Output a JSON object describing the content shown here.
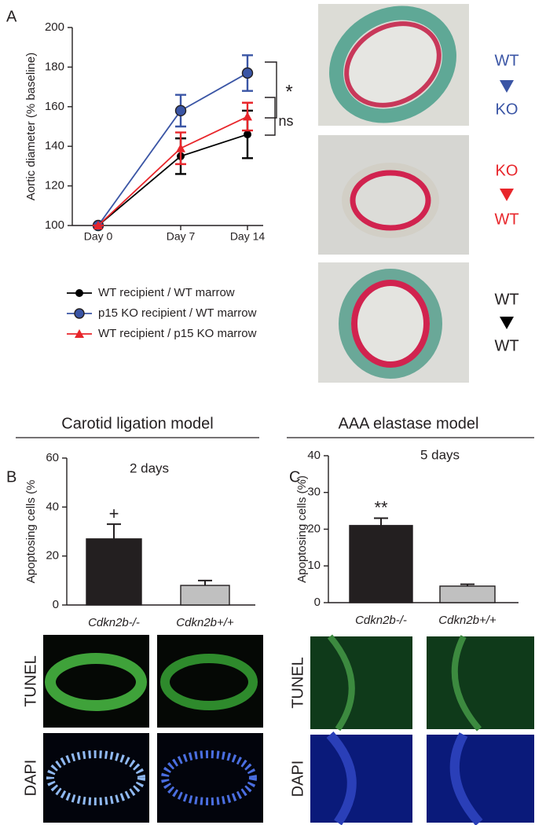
{
  "panel_labels": [
    "A",
    "B",
    "C"
  ],
  "section_titles": [
    "Carotid ligation model",
    "AAA elastase model"
  ],
  "image_labels": {
    "a": [
      [
        "WT",
        "KO"
      ],
      [
        "KO",
        "WT"
      ],
      [
        "WT",
        "WT"
      ]
    ],
    "b": [
      "TUNEL",
      "DAPI"
    ],
    "c": [
      "TUNEL",
      "DAPI"
    ]
  },
  "chart_data": [
    {
      "type": "line",
      "ylabel": "Aortic diameter (% baseline)",
      "categories": [
        "Day 0",
        "Day 7",
        "Day 14"
      ],
      "ylim": [
        100,
        200
      ],
      "yticks": [
        100,
        120,
        140,
        160,
        180,
        200
      ],
      "series": [
        {
          "name": "WT recipient / WT marrow",
          "color": "#000000",
          "marker": "circle",
          "values": [
            100,
            135,
            146
          ],
          "errors": [
            0,
            9,
            12
          ]
        },
        {
          "name": "p15 KO recipient / WT marrow",
          "color": "#3a55a5",
          "marker": "circle",
          "values": [
            100,
            158,
            177
          ],
          "errors": [
            0,
            8,
            9
          ]
        },
        {
          "name": "WT recipient / p15 KO marrow",
          "color": "#e8262b",
          "marker": "triangle",
          "values": [
            100,
            139,
            155
          ],
          "errors": [
            0,
            8,
            7
          ]
        }
      ],
      "annotations": [
        "*",
        "ns"
      ]
    },
    {
      "type": "bar",
      "title": "2 days",
      "ylabel": "Apoptosing cells (%",
      "categories": [
        "Cdkn2b-/-",
        "Cdkn2b+/+"
      ],
      "values": [
        27,
        8
      ],
      "errors": [
        6,
        2
      ],
      "colors": [
        "#231f20",
        "#c0c0c0"
      ],
      "ylim": [
        0,
        60
      ],
      "yticks": [
        0,
        20,
        40,
        60
      ],
      "annotations": [
        "+"
      ]
    },
    {
      "type": "bar",
      "title": "5 days",
      "ylabel": "Apoptosing cells (%)",
      "categories": [
        "Cdkn2b-/-",
        "Cdkn2b+/+"
      ],
      "values": [
        21,
        4.5
      ],
      "errors": [
        2,
        0.5
      ],
      "colors": [
        "#231f20",
        "#c0c0c0"
      ],
      "ylim": [
        0,
        40
      ],
      "yticks": [
        0,
        10,
        20,
        30,
        40
      ],
      "annotations": [
        "**"
      ]
    }
  ]
}
